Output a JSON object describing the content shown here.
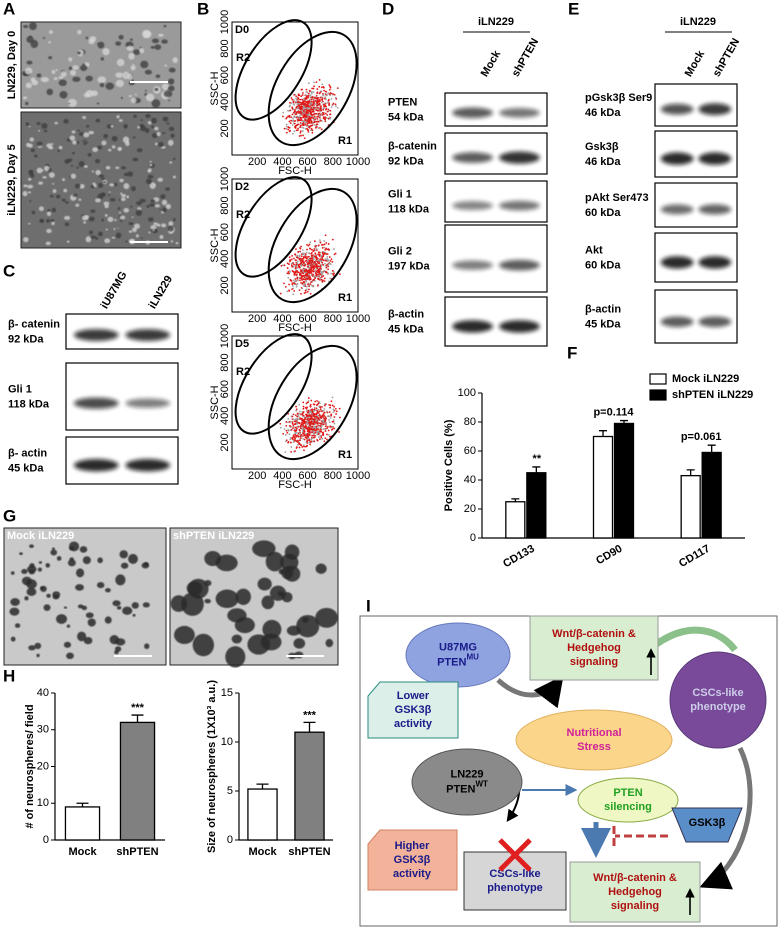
{
  "panels": {
    "A": {
      "letter": "A",
      "labels": [
        "LN229, Day 0",
        "iLN229, Day 5"
      ]
    },
    "B": {
      "letter": "B",
      "plots": [
        "D0",
        "D2",
        "D5"
      ],
      "gates": [
        "R1",
        "R2"
      ],
      "xlabel": "FSC-H",
      "ylabel": "SSC-H",
      "lim": [
        0,
        1000
      ],
      "ticks": [
        200,
        400,
        600,
        800,
        1000
      ]
    },
    "C": {
      "letter": "C",
      "columns": [
        "iU87MG",
        "iLN229"
      ],
      "blots": [
        {
          "name": "β- catenin",
          "size": "92 kDa"
        },
        {
          "name": "Gli 1",
          "size": "118 kDa"
        },
        {
          "name": "β- actin",
          "size": "45 kDa"
        }
      ]
    },
    "D": {
      "letter": "D",
      "group": "iLN229",
      "columns": [
        "Mock",
        "shPTEN"
      ],
      "blots": [
        {
          "name": "PTEN",
          "size": "54 kDa"
        },
        {
          "name": "β-catenin",
          "size": "92 kDa"
        },
        {
          "name": "Gli 1",
          "size": "118 kDa"
        },
        {
          "name": "Gli 2",
          "size": "197 kDa"
        },
        {
          "name": "β-actin",
          "size": "45 kDa"
        }
      ]
    },
    "E": {
      "letter": "E",
      "group": "iLN229",
      "columns": [
        "Mock",
        "shPTEN"
      ],
      "blots": [
        {
          "name": "pGsk3β Ser9",
          "size": "46 kDa"
        },
        {
          "name": "Gsk3β",
          "size": "46 kDa"
        },
        {
          "name": "pAkt Ser473",
          "size": "60 kDa"
        },
        {
          "name": "Akt",
          "size": "60 kDa"
        },
        {
          "name": "β-actin",
          "size": "45 kDa"
        }
      ]
    },
    "G": {
      "letter": "G",
      "labels": [
        "Mock iLN229",
        "shPTEN iLN229"
      ]
    },
    "H": {
      "letter": "H"
    },
    "I": {
      "letter": "I",
      "nodes": [
        {
          "lines": [
            "U87MG",
            "PTEN"
          ],
          "sup": "MU"
        },
        {
          "lines": [
            "Wnt/β-catenin &",
            "Hedgehog",
            "signaling"
          ]
        },
        {
          "lines": [
            "Lower",
            "GSK3β",
            "activity"
          ]
        },
        {
          "lines": [
            "CSCs-like",
            "phenotype"
          ]
        },
        {
          "lines": [
            "Nutritional",
            "Stress"
          ]
        },
        {
          "lines": [
            "LN229",
            "PTEN"
          ],
          "sup": "WT"
        },
        {
          "lines": [
            "PTEN",
            "silencing"
          ]
        },
        {
          "lines": [
            "GSK3β"
          ]
        },
        {
          "lines": [
            "Higher",
            "GSK3β",
            "activity"
          ]
        },
        {
          "lines": [
            "CSCs-like",
            "phenotype"
          ]
        },
        {
          "lines": [
            "Wnt/β-catenin &",
            "Hedgehog",
            "signaling"
          ]
        }
      ]
    }
  },
  "chart_data": [
    {
      "type": "bar",
      "letter": "F",
      "ylabel": "Positive Cells (%)",
      "categories": [
        "CD133",
        "CD90",
        "CD117"
      ],
      "series": [
        {
          "name": "Mock iLN229",
          "color": "#ffffff",
          "values": [
            25,
            70,
            43
          ],
          "errors": [
            2,
            4,
            4
          ]
        },
        {
          "name": "shPTEN iLN229",
          "color": "#000000",
          "values": [
            45,
            79,
            59
          ],
          "errors": [
            4,
            2,
            5
          ]
        }
      ],
      "annotations": [
        "**",
        "p=0.114",
        "p=0.061"
      ],
      "ylim": [
        0,
        100
      ],
      "yticks": [
        0,
        20,
        40,
        60,
        80,
        100
      ]
    },
    {
      "type": "bar",
      "ylabel": "# of neurospheres/ field",
      "categories": [
        "Mock",
        "shPTEN"
      ],
      "values": [
        9,
        32
      ],
      "errors": [
        1,
        2
      ],
      "colors": [
        "#ffffff",
        "#808080"
      ],
      "annotations": [
        null,
        "***"
      ],
      "ylim": [
        0,
        40
      ],
      "yticks": [
        0,
        10,
        20,
        30,
        40
      ]
    },
    {
      "type": "bar",
      "ylabel": "Size of neurospheres (1X10³ a.u.)",
      "categories": [
        "Mock",
        "shPTEN"
      ],
      "values": [
        5.2,
        11
      ],
      "errors": [
        0.5,
        1
      ],
      "colors": [
        "#ffffff",
        "#808080"
      ],
      "annotations": [
        null,
        "***"
      ],
      "ylim": [
        0,
        15
      ],
      "yticks": [
        0,
        5,
        10,
        15
      ]
    }
  ]
}
